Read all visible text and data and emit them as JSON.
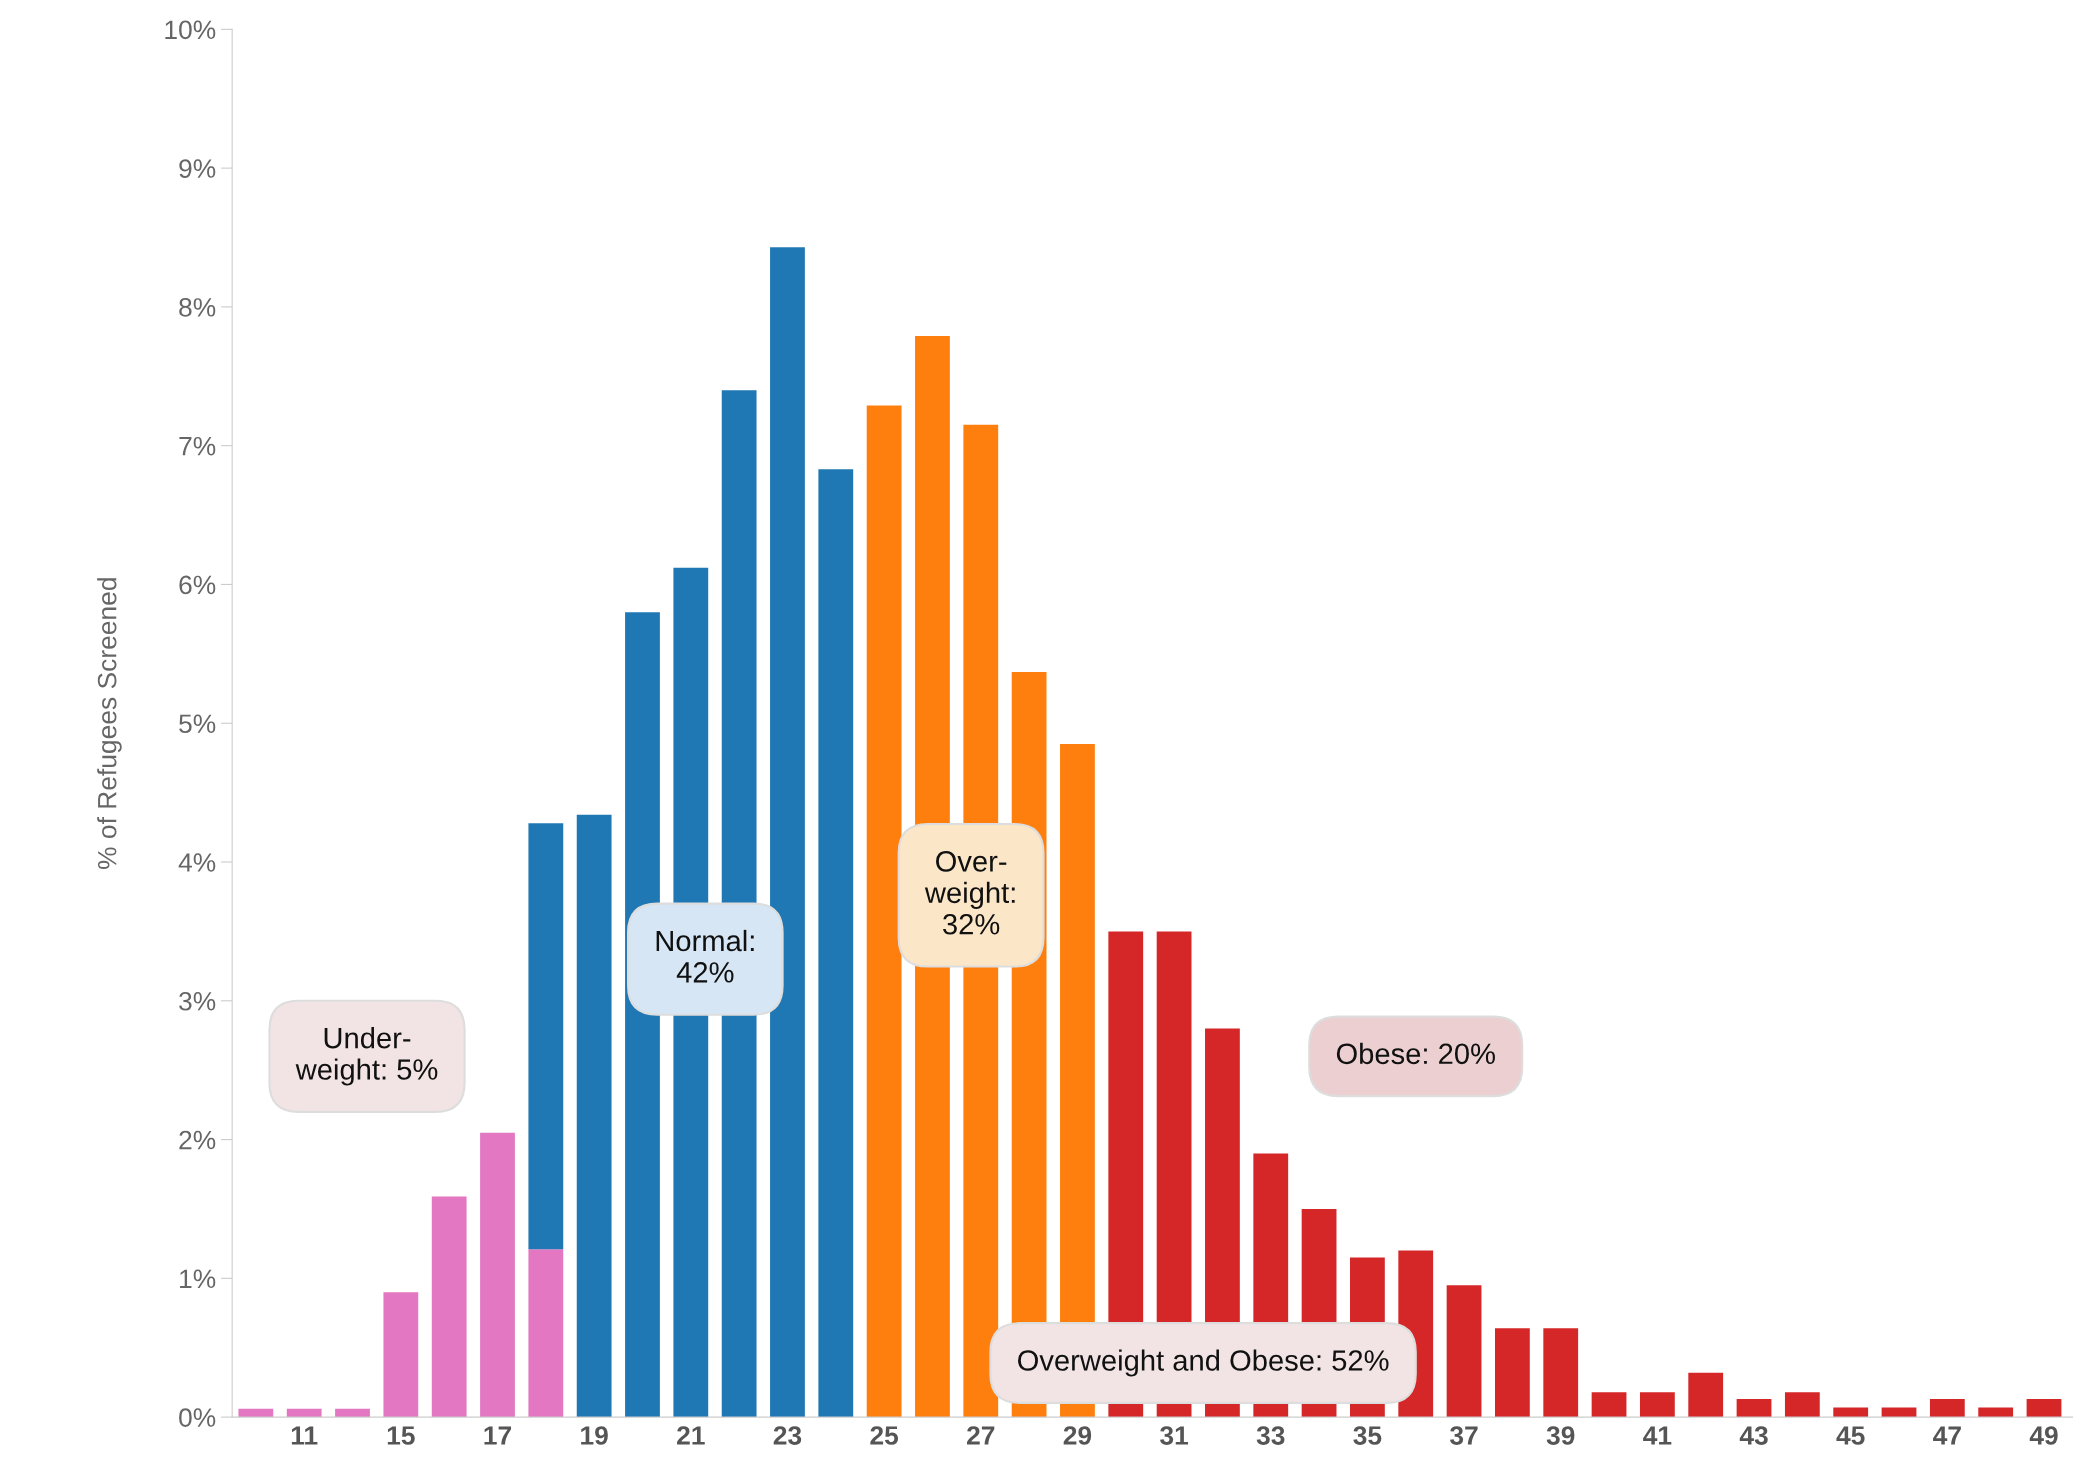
{
  "chart_data": {
    "type": "bar",
    "stacked": true,
    "ylabel": "% of Refugees Screened",
    "categories": [
      null,
      "11",
      null,
      "15",
      null,
      "17",
      null,
      "19",
      null,
      "21",
      null,
      "23",
      null,
      "25",
      null,
      "27",
      null,
      "29",
      null,
      "31",
      null,
      "33",
      null,
      "35",
      null,
      "37",
      null,
      "39",
      null,
      "41",
      null,
      "43",
      null,
      "45",
      null,
      "47",
      null,
      "49"
    ],
    "series": [
      {
        "color": "#e377c2",
        "values": [
          0.06,
          0.06,
          0.06,
          0.9,
          1.59,
          2.05,
          1.21,
          null,
          null,
          null,
          null,
          null,
          null,
          null,
          null,
          null,
          null,
          null,
          null,
          null,
          null,
          null,
          null,
          null,
          null,
          null,
          null,
          null,
          null,
          null,
          null,
          null,
          null,
          null,
          null,
          null,
          null,
          null
        ]
      },
      {
        "color": "#1f77b4",
        "values": [
          null,
          null,
          null,
          null,
          null,
          null,
          3.07,
          4.34,
          5.8,
          6.12,
          7.4,
          8.43,
          6.83,
          null,
          null,
          null,
          null,
          null,
          null,
          null,
          null,
          null,
          null,
          null,
          null,
          null,
          null,
          null,
          null,
          null,
          null,
          null,
          null,
          null,
          null,
          null,
          null,
          null
        ]
      },
      {
        "color": "#ff7f0e",
        "values": [
          null,
          null,
          null,
          null,
          null,
          null,
          null,
          null,
          null,
          null,
          null,
          null,
          null,
          7.29,
          7.79,
          7.15,
          5.37,
          4.85,
          null,
          null,
          null,
          null,
          null,
          null,
          null,
          null,
          null,
          null,
          null,
          null,
          null,
          null,
          null,
          null,
          null,
          null,
          null,
          null
        ]
      },
      {
        "color": "#d62728",
        "values": [
          null,
          null,
          null,
          null,
          null,
          null,
          null,
          null,
          null,
          null,
          null,
          null,
          null,
          null,
          null,
          null,
          null,
          null,
          3.5,
          3.5,
          2.8,
          1.9,
          1.5,
          1.15,
          1.2,
          0.95,
          0.64,
          0.64,
          0.18,
          0.18,
          0.32,
          0.13,
          0.18,
          0.07,
          0.07,
          0.13,
          0.07,
          0.13
        ]
      }
    ],
    "ylim": [
      0,
      10
    ],
    "yticks": [
      {
        "value": 0,
        "label": "0%"
      },
      {
        "value": 1,
        "label": "1%"
      },
      {
        "value": 2,
        "label": "2%"
      },
      {
        "value": 3,
        "label": "3%"
      },
      {
        "value": 4,
        "label": "4%"
      },
      {
        "value": 5,
        "label": "5%"
      },
      {
        "value": 6,
        "label": "6%"
      },
      {
        "value": 7,
        "label": "7%"
      },
      {
        "value": 8,
        "label": "8%"
      },
      {
        "value": 9,
        "label": "9%"
      },
      {
        "value": 10,
        "label": "10%"
      }
    ],
    "grid": false,
    "annotations": [
      "Under-\nweight: 5%",
      "Normal:\n42%",
      "Over-\nweight:\n32%",
      "Obese: 20%",
      "Overweight and Obese: 52%"
    ]
  }
}
